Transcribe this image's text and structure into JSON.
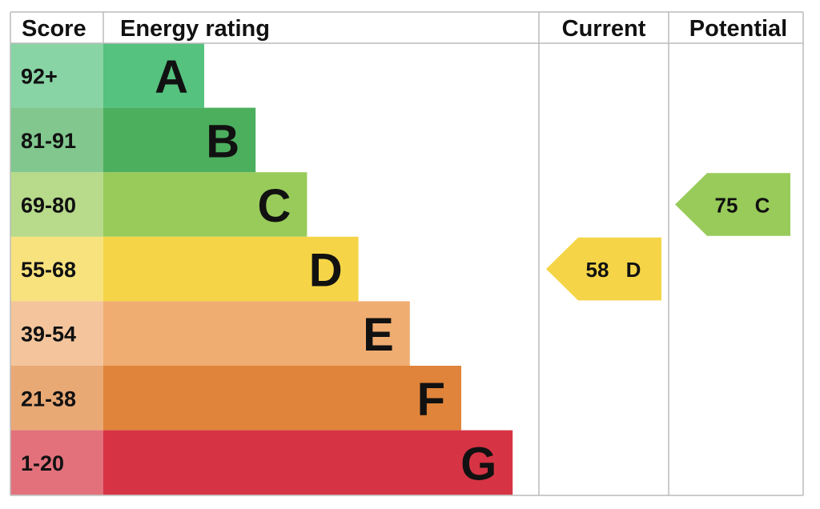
{
  "header": {
    "score": "Score",
    "rating": "Energy rating",
    "current": "Current",
    "potential": "Potential"
  },
  "bands": [
    {
      "score": "92+",
      "letter": "A",
      "color": "#55c27f"
    },
    {
      "score": "81-91",
      "letter": "B",
      "color": "#4caf5e"
    },
    {
      "score": "69-80",
      "letter": "C",
      "color": "#98cb5a"
    },
    {
      "score": "55-68",
      "letter": "D",
      "color": "#f5d547"
    },
    {
      "score": "39-54",
      "letter": "E",
      "color": "#f0ad72"
    },
    {
      "score": "21-38",
      "letter": "F",
      "color": "#df843a"
    },
    {
      "score": "1-20",
      "letter": "G",
      "color": "#d63444"
    }
  ],
  "current": {
    "score": "58",
    "rating": "D"
  },
  "potential": {
    "score": "75",
    "rating": "C"
  }
}
